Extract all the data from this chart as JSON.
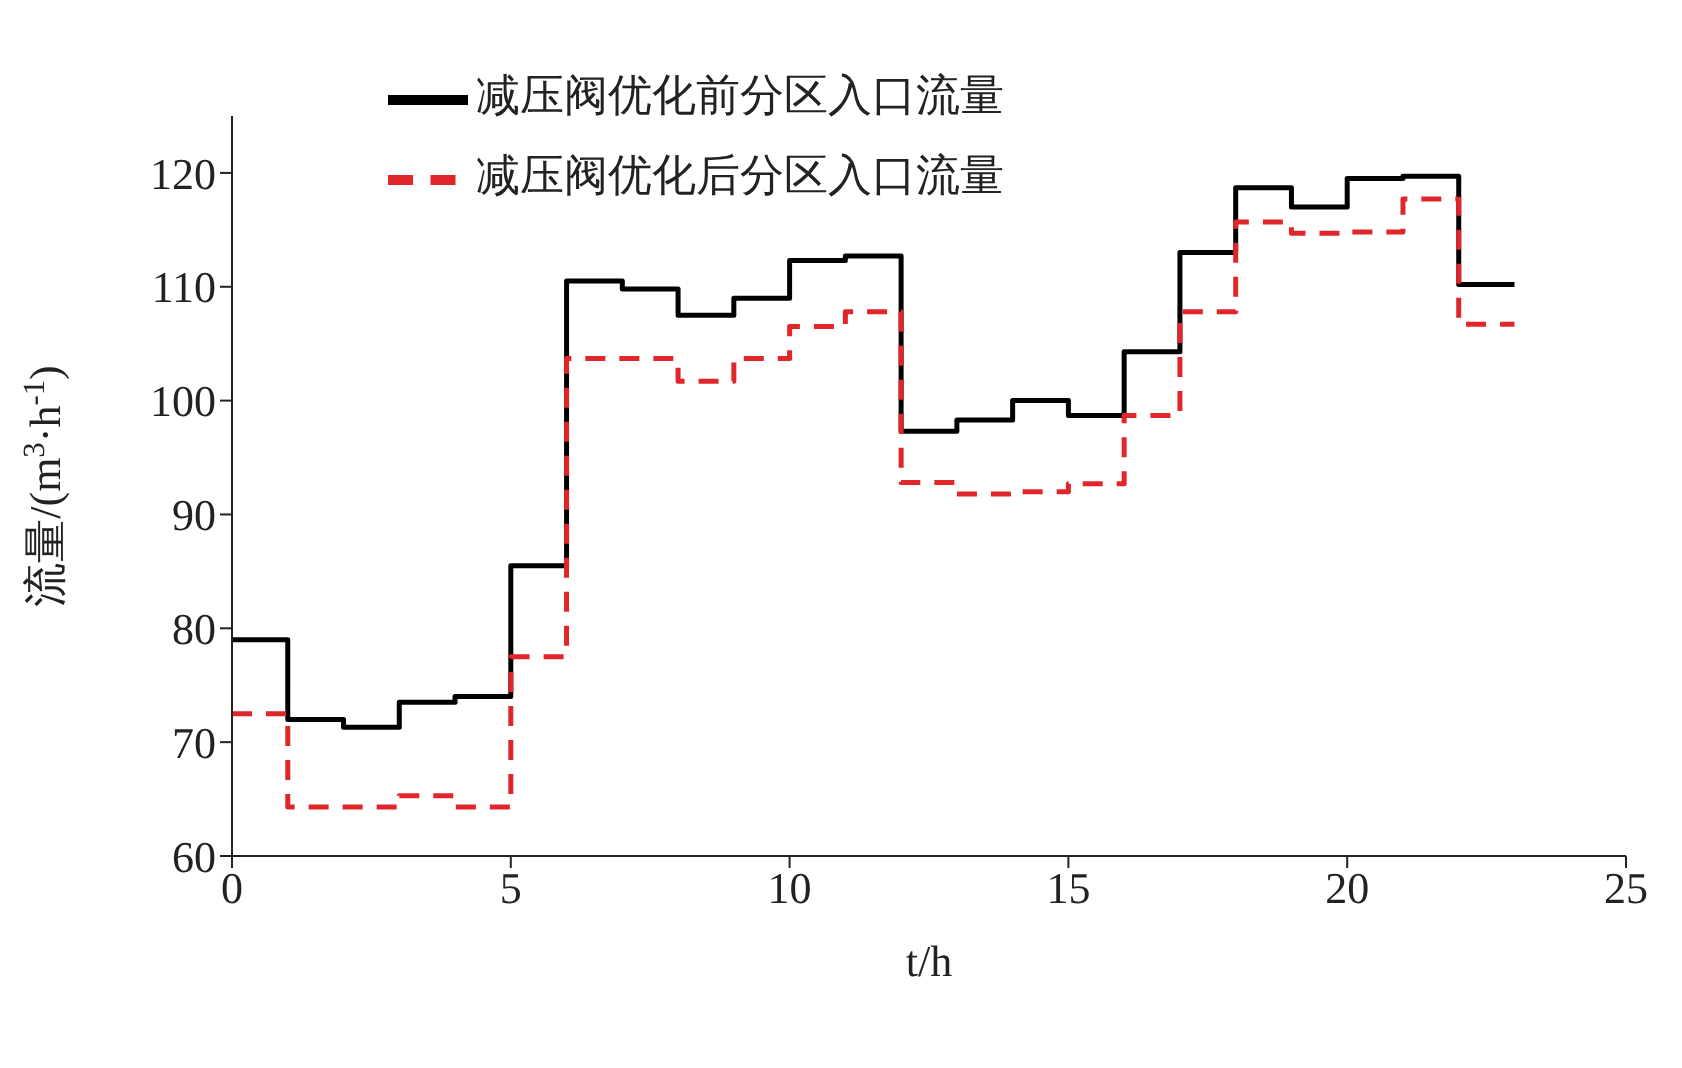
{
  "chart_data": {
    "type": "step",
    "xlabel": "t/h",
    "ylabel": "流量/(m$^{3}$·h$^{-1}$)",
    "x": [
      0,
      1,
      2,
      3,
      4,
      5,
      6,
      7,
      8,
      9,
      10,
      11,
      12,
      13,
      14,
      15,
      16,
      17,
      18,
      19,
      20,
      21,
      22,
      23
    ],
    "series": [
      {
        "name": "减压阀优化前分区入口流量",
        "color": "#000000",
        "line_style": "solid",
        "values": [
          79,
          72,
          71.3,
          73.5,
          74,
          85.5,
          110.5,
          109.8,
          107.5,
          109,
          112.3,
          112.7,
          97.3,
          98.3,
          100,
          98.7,
          104.3,
          113,
          118.7,
          117,
          119.5,
          119.7,
          110.2,
          110.2
        ]
      },
      {
        "name": "减压阀优化后分区入口流量",
        "color": "#e0262b",
        "line_style": "dashed",
        "values": [
          72.5,
          64.3,
          64.3,
          65.3,
          64.3,
          77.5,
          103.7,
          103.7,
          101.7,
          103.7,
          106.5,
          107.8,
          92.8,
          91.8,
          92,
          92.7,
          98.7,
          107.8,
          115.7,
          114.7,
          114.8,
          117.7,
          106.7,
          106.7
        ]
      }
    ],
    "xlim": [
      0,
      25
    ],
    "xticks": [
      0,
      5,
      10,
      15,
      20,
      25
    ],
    "ylim": [
      60,
      125
    ],
    "yticks": [
      60,
      70,
      80,
      90,
      100,
      110,
      120
    ],
    "grid": false,
    "legend": "top left"
  }
}
